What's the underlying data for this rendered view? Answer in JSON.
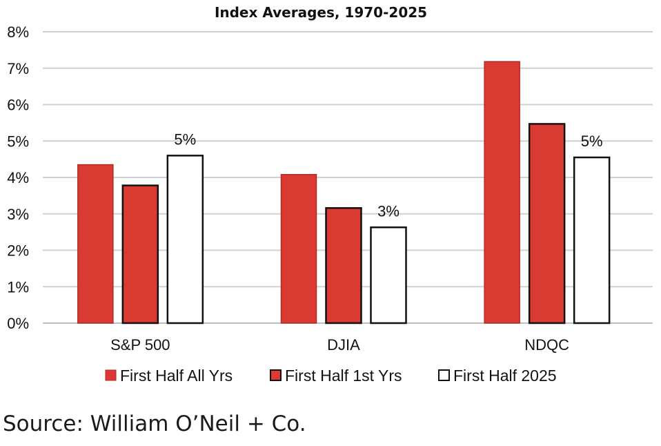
{
  "chart_data": {
    "type": "bar",
    "title": "Index Averages, 1970-2025",
    "categories": [
      "S&P 500",
      "DJIA",
      "NDQC"
    ],
    "ylim": [
      0,
      8
    ],
    "yticks": [
      "0%",
      "1%",
      "2%",
      "3%",
      "4%",
      "5%",
      "6%",
      "7%",
      "8%"
    ],
    "grid": true,
    "legend_position": "bottom",
    "series": [
      {
        "name": "First Half All Yrs",
        "values": [
          4.35,
          4.08,
          7.18
        ],
        "color": "#d93a32",
        "edge": "#b32a24"
      },
      {
        "name": "First Half 1st Yrs",
        "values": [
          3.78,
          3.16,
          5.47
        ],
        "color": "#d93a32",
        "edge": "#111111"
      },
      {
        "name": "First Half 2025",
        "values": [
          4.6,
          2.63,
          4.55
        ],
        "color": "#ffffff",
        "edge": "#111111"
      }
    ],
    "data_labels": [
      {
        "series": 2,
        "category": 0,
        "text": "5%"
      },
      {
        "series": 2,
        "category": 1,
        "text": "3%"
      },
      {
        "series": 2,
        "category": 2,
        "text": "5%"
      }
    ]
  },
  "footer": {
    "source": "Source: William O’Neil + Co."
  }
}
